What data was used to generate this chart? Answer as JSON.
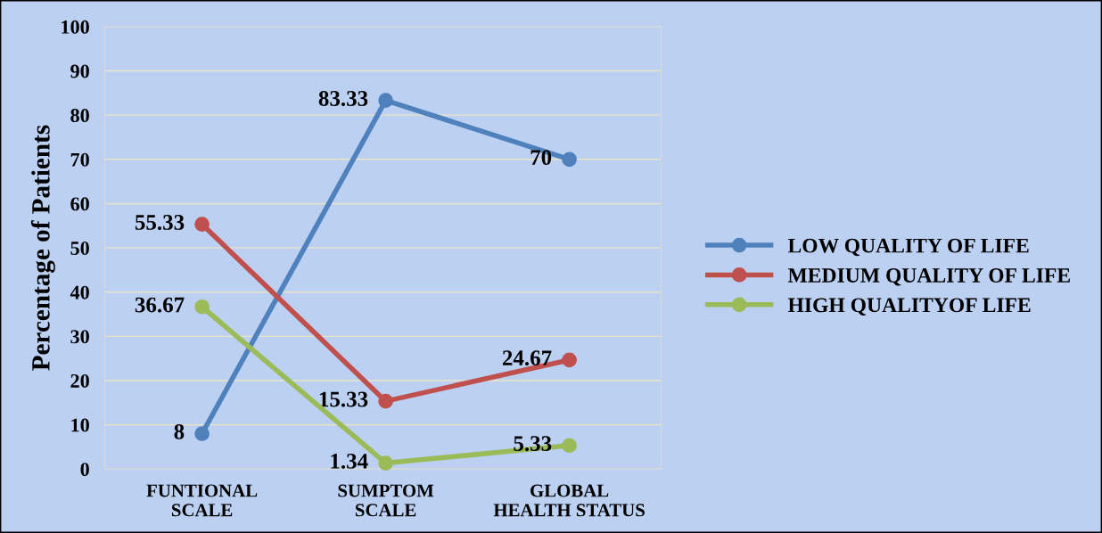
{
  "chart_data": {
    "type": "line",
    "ylabel": "Percentage of Patients",
    "categories": [
      "FUNTIONAL\nSCALE",
      "SUMPTOM\nSCALE",
      "GLOBAL\nHEALTH STATUS"
    ],
    "series": [
      {
        "name": "LOW QUALITY OF LIFE",
        "color": "#4f81bd",
        "values": [
          8,
          83.33,
          70
        ]
      },
      {
        "name": "MEDIUM QUALITY OF LIFE",
        "color": "#c0504d",
        "values": [
          55.33,
          15.33,
          24.67
        ]
      },
      {
        "name": "HIGH QUALITYOF LIFE",
        "color": "#9bbb59",
        "values": [
          36.67,
          1.34,
          5.33
        ]
      }
    ],
    "ylim": [
      0,
      100
    ],
    "yticks": [
      0,
      10,
      20,
      30,
      40,
      50,
      60,
      70,
      80,
      90,
      100
    ],
    "grid": "y",
    "legend": "right",
    "marker": "circle",
    "line_style": "solid",
    "data_labels": true
  }
}
